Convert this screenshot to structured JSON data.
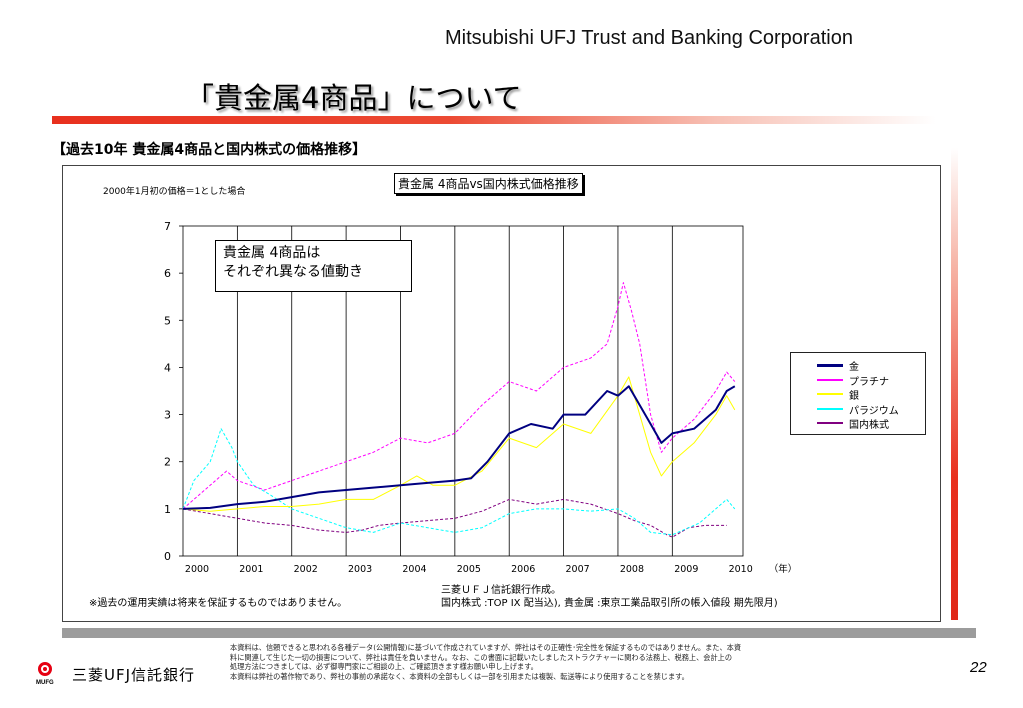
{
  "header": {
    "company": "Mitsubishi UFJ Trust and Banking Corporation",
    "title": "「貴金属4商品」について"
  },
  "section_title": "【過去10年 貴金属4商品と国内株式の価格推移】",
  "chart_note": "2000年1月初の価格＝1とした場合",
  "callout": {
    "line1": "貴金属 4商品は",
    "line2": "それぞれ異なる値動き"
  },
  "disclaimer": "※過去の運用実績は将来を保証するものではありません。",
  "source": {
    "line1": "三菱ＵＦＪ信託銀行作成。",
    "line2": "国内株式 :TOP IX 配当込), 貴金属 :東京工業品取引所の帳入値段 期先限月)"
  },
  "footer": {
    "line1": "本資料は、信頼できると思われる各種データ(公開情報)に基づいて作成されていますが、弊社はその正確性･完全性を保証するものではありません。また、本資",
    "line2": "料に関連して生じた一切の損害について、弊社は責任を負いません。なお、この書面に記載いたしましたストラクチャーに関わる法務上、税務上、会計上の",
    "line3": "処理方法につきましては、必ず御専門家にご相談の上、ご確認頂きます様お願い申し上げます。",
    "line4": "本資料は弊社の著作物であり、弊社の事前の承諾なく、本資料の全部もしくは一部を引用または複製、転送等により使用することを禁じます。"
  },
  "logo": {
    "mark_text": "MUFG",
    "name": "三菱UFJ信託銀行"
  },
  "page_number": "22",
  "colors": {
    "accent": "#e8301e",
    "gold": "#000080",
    "platinum": "#ff00ff",
    "silver": "#ffff00",
    "palladium": "#00ffff",
    "stocks": "#800080"
  },
  "chart_data": {
    "type": "line",
    "title": "貴金属 4商品vs国内株式価格推移",
    "xlabel": "（年）",
    "ylabel": "",
    "xlim": [
      2000,
      2010.3
    ],
    "ylim": [
      0,
      7
    ],
    "x_ticks": [
      2000,
      2001,
      2002,
      2003,
      2004,
      2005,
      2006,
      2007,
      2008,
      2009,
      2010
    ],
    "y_ticks": [
      0,
      1,
      2,
      3,
      4,
      5,
      6,
      7
    ],
    "grid": "vertical",
    "legend_position": "right",
    "series": [
      {
        "name": "金",
        "color": "#000080",
        "width": 2,
        "dashed": false,
        "x": [
          2000,
          2000.5,
          2001,
          2001.5,
          2002,
          2002.5,
          2003,
          2003.5,
          2004,
          2004.5,
          2005,
          2005.3,
          2005.6,
          2006,
          2006.4,
          2006.8,
          2007,
          2007.4,
          2007.8,
          2008,
          2008.2,
          2008.4,
          2008.6,
          2008.8,
          2009,
          2009.4,
          2009.8,
          2010,
          2010.15
        ],
        "y": [
          1.0,
          1.02,
          1.1,
          1.15,
          1.25,
          1.35,
          1.4,
          1.45,
          1.5,
          1.55,
          1.6,
          1.65,
          2.0,
          2.6,
          2.8,
          2.7,
          3.0,
          3.0,
          3.5,
          3.4,
          3.6,
          3.2,
          2.8,
          2.4,
          2.6,
          2.7,
          3.1,
          3.5,
          3.6
        ]
      },
      {
        "name": "プラチナ",
        "color": "#ff00ff",
        "width": 1,
        "dashed": true,
        "x": [
          2000,
          2000.3,
          2000.8,
          2001,
          2001.5,
          2002,
          2002.5,
          2003,
          2003.5,
          2004,
          2004.5,
          2005,
          2005.5,
          2006,
          2006.5,
          2007,
          2007.5,
          2007.8,
          2008,
          2008.1,
          2008.25,
          2008.4,
          2008.6,
          2008.8,
          2009,
          2009.4,
          2009.8,
          2010,
          2010.15
        ],
        "y": [
          1.0,
          1.3,
          1.8,
          1.6,
          1.4,
          1.6,
          1.8,
          2.0,
          2.2,
          2.5,
          2.4,
          2.6,
          3.2,
          3.7,
          3.5,
          4.0,
          4.2,
          4.5,
          5.3,
          5.8,
          5.2,
          4.5,
          3.0,
          2.2,
          2.5,
          2.9,
          3.5,
          3.9,
          3.7
        ]
      },
      {
        "name": "銀",
        "color": "#ffff00",
        "width": 1,
        "dashed": false,
        "x": [
          2000,
          2000.5,
          2001,
          2001.5,
          2002,
          2002.5,
          2003,
          2003.5,
          2004,
          2004.3,
          2004.6,
          2005,
          2005.5,
          2006,
          2006.5,
          2007,
          2007.5,
          2008,
          2008.2,
          2008.4,
          2008.6,
          2008.8,
          2009,
          2009.4,
          2009.8,
          2010,
          2010.15
        ],
        "y": [
          1.0,
          0.95,
          1.0,
          1.05,
          1.05,
          1.1,
          1.2,
          1.2,
          1.5,
          1.7,
          1.5,
          1.5,
          1.8,
          2.5,
          2.3,
          2.8,
          2.6,
          3.4,
          3.8,
          3.0,
          2.2,
          1.7,
          2.0,
          2.4,
          3.0,
          3.4,
          3.1
        ]
      },
      {
        "name": "パラジウム",
        "color": "#00ffff",
        "width": 1,
        "dashed": true,
        "x": [
          2000,
          2000.2,
          2000.5,
          2000.7,
          2000.9,
          2001,
          2001.3,
          2001.6,
          2002,
          2002.5,
          2003,
          2003.5,
          2004,
          2004.5,
          2005,
          2005.5,
          2006,
          2006.5,
          2007,
          2007.5,
          2008,
          2008.3,
          2008.6,
          2009,
          2009.5,
          2010,
          2010.15
        ],
        "y": [
          1.0,
          1.6,
          2.0,
          2.7,
          2.3,
          2.0,
          1.5,
          1.3,
          1.0,
          0.8,
          0.6,
          0.5,
          0.7,
          0.6,
          0.5,
          0.6,
          0.9,
          1.0,
          1.0,
          0.95,
          1.0,
          0.8,
          0.5,
          0.45,
          0.7,
          1.2,
          1.0
        ]
      },
      {
        "name": "国内株式",
        "color": "#800080",
        "width": 1,
        "dashed": true,
        "x": [
          2000,
          2000.5,
          2001,
          2001.5,
          2002,
          2002.5,
          2003,
          2003.3,
          2003.6,
          2004,
          2004.5,
          2005,
          2005.5,
          2006,
          2006.5,
          2007,
          2007.5,
          2008,
          2008.3,
          2008.6,
          2008.9,
          2009,
          2009.3,
          2009.6,
          2010
        ],
        "y": [
          1.0,
          0.9,
          0.8,
          0.7,
          0.65,
          0.55,
          0.5,
          0.55,
          0.65,
          0.7,
          0.75,
          0.8,
          0.95,
          1.2,
          1.1,
          1.2,
          1.1,
          0.9,
          0.75,
          0.65,
          0.45,
          0.4,
          0.6,
          0.65,
          0.65
        ]
      }
    ]
  }
}
